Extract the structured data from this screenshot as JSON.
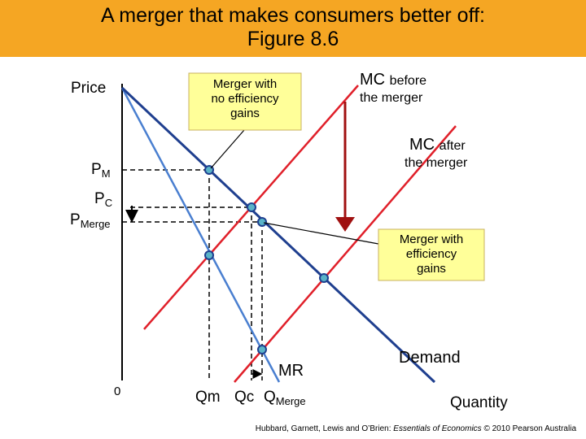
{
  "header": {
    "title_lines": [
      "A merger that makes consumers better off:",
      "Figure 8.6"
    ]
  },
  "axes": {
    "y_label": "Price",
    "x_label": "Quantity",
    "origin": "0"
  },
  "price_labels": [
    {
      "symbol": "P",
      "subscript": "M"
    },
    {
      "symbol": "P",
      "subscript": "C"
    },
    {
      "symbol": "P",
      "subscript": "Merge"
    }
  ],
  "quantity_labels": [
    {
      "text": "Qm"
    },
    {
      "text": "Qc"
    },
    {
      "symbol": "Q",
      "subscript": "Merge"
    }
  ],
  "curves": {
    "mc_before": {
      "main": "MC",
      "rest": "before",
      "line2": "the merger"
    },
    "mc_after": {
      "main": "MC",
      "rest": "after",
      "line2": "the merger"
    },
    "mr": "MR",
    "demand": "Demand"
  },
  "callouts": [
    {
      "lines": [
        "Merger with",
        "no efficiency",
        "gains"
      ]
    },
    {
      "lines": [
        "Merger with",
        "efficiency",
        "gains"
      ]
    }
  ],
  "footer": {
    "authors": "Hubbard, Garnett, Lewis and O’Brien: ",
    "book": "Essentials of Economics",
    "rest": " © 2010 Pearson Australia"
  }
}
